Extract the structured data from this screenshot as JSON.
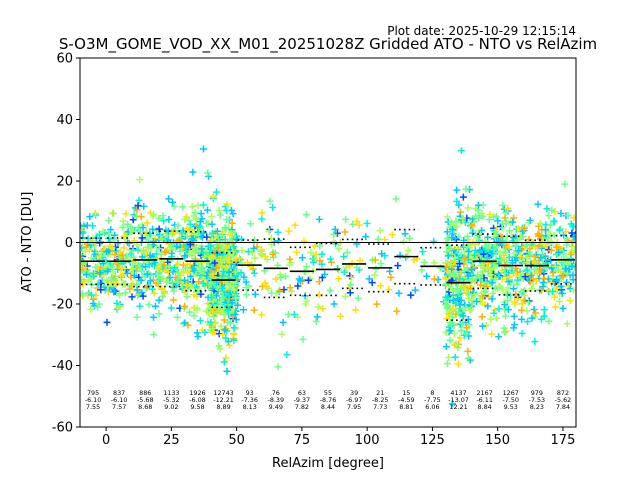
{
  "chart_data": {
    "type": "scatter",
    "title": "S-O3M_GOME_VOD_XX_M01_20251028Z Gridded ATO - NTO vs RelAzim",
    "plot_date": "Plot date: 2025-10-29 12:15:14",
    "xlabel": "RelAzim [degree]",
    "ylabel": "ATO - NTO [DU]",
    "xlim": [
      -10,
      180
    ],
    "ylim": [
      -60,
      60
    ],
    "xticks": [
      0,
      25,
      50,
      75,
      100,
      125,
      150,
      175
    ],
    "yticks": [
      -60,
      -40,
      -20,
      0,
      20,
      40,
      60
    ],
    "reference_line": 0,
    "bins": [
      {
        "x": -5,
        "count": "795",
        "mean": -6.1,
        "std": 7.55,
        "mean_label": "-6.10",
        "std_label": "7.55"
      },
      {
        "x": 5,
        "count": "837",
        "mean": -6.1,
        "std": 7.57,
        "mean_label": "-6.10",
        "std_label": "7.57"
      },
      {
        "x": 15,
        "count": "886",
        "mean": -5.68,
        "std": 8.68,
        "mean_label": "-5.68",
        "std_label": "8.68"
      },
      {
        "x": 25,
        "count": "1133",
        "mean": -5.32,
        "std": 9.02,
        "mean_label": "-5.32",
        "std_label": "9.02"
      },
      {
        "x": 35,
        "count": "1926",
        "mean": -6.08,
        "std": 9.58,
        "mean_label": "-6.08",
        "std_label": "9.58"
      },
      {
        "x": 45,
        "count": "12743",
        "mean": -12.21,
        "std": 8.89,
        "mean_label": "-12.21",
        "std_label": "8.89"
      },
      {
        "x": 55,
        "count": "93",
        "mean": -7.36,
        "std": 8.13,
        "mean_label": "-7.36",
        "std_label": "8.13"
      },
      {
        "x": 65,
        "count": "76",
        "mean": -8.39,
        "std": 9.49,
        "mean_label": "-8.39",
        "std_label": "9.49"
      },
      {
        "x": 75,
        "count": "63",
        "mean": -9.37,
        "std": 7.82,
        "mean_label": "-9.37",
        "std_label": "7.82"
      },
      {
        "x": 85,
        "count": "55",
        "mean": -8.76,
        "std": 8.44,
        "mean_label": "-8.76",
        "std_label": "8.44"
      },
      {
        "x": 95,
        "count": "39",
        "mean": -6.97,
        "std": 7.95,
        "mean_label": "-6.97",
        "std_label": "7.95"
      },
      {
        "x": 105,
        "count": "21",
        "mean": -8.25,
        "std": 7.73,
        "mean_label": "-8.25",
        "std_label": "7.73"
      },
      {
        "x": 115,
        "count": "15",
        "mean": -4.59,
        "std": 8.81,
        "mean_label": "-4.59",
        "std_label": "8.81"
      },
      {
        "x": 125,
        "count": "8",
        "mean": -7.75,
        "std": 6.06,
        "mean_label": "-7.75",
        "std_label": "6.06"
      },
      {
        "x": 135,
        "count": "4137",
        "mean": -13.07,
        "std": 12.21,
        "mean_label": "-13.07",
        "std_label": "12.21"
      },
      {
        "x": 145,
        "count": "2167",
        "mean": -6.11,
        "std": 8.84,
        "mean_label": "-6.11",
        "std_label": "8.84"
      },
      {
        "x": 155,
        "count": "1267",
        "mean": -7.5,
        "std": 9.53,
        "mean_label": "-7.50",
        "std_label": "9.53"
      },
      {
        "x": 165,
        "count": "979",
        "mean": -7.53,
        "std": 8.23,
        "mean_label": "-7.53",
        "std_label": "8.23"
      },
      {
        "x": 175,
        "count": "872",
        "mean": -5.62,
        "std": 7.84,
        "mean_label": "-5.62",
        "std_label": "7.84"
      }
    ],
    "point_colors": [
      "#0047ff",
      "#00c8ff",
      "#00f0e0",
      "#6cff8c",
      "#a8ff58",
      "#ffe000",
      "#ffb000"
    ]
  }
}
